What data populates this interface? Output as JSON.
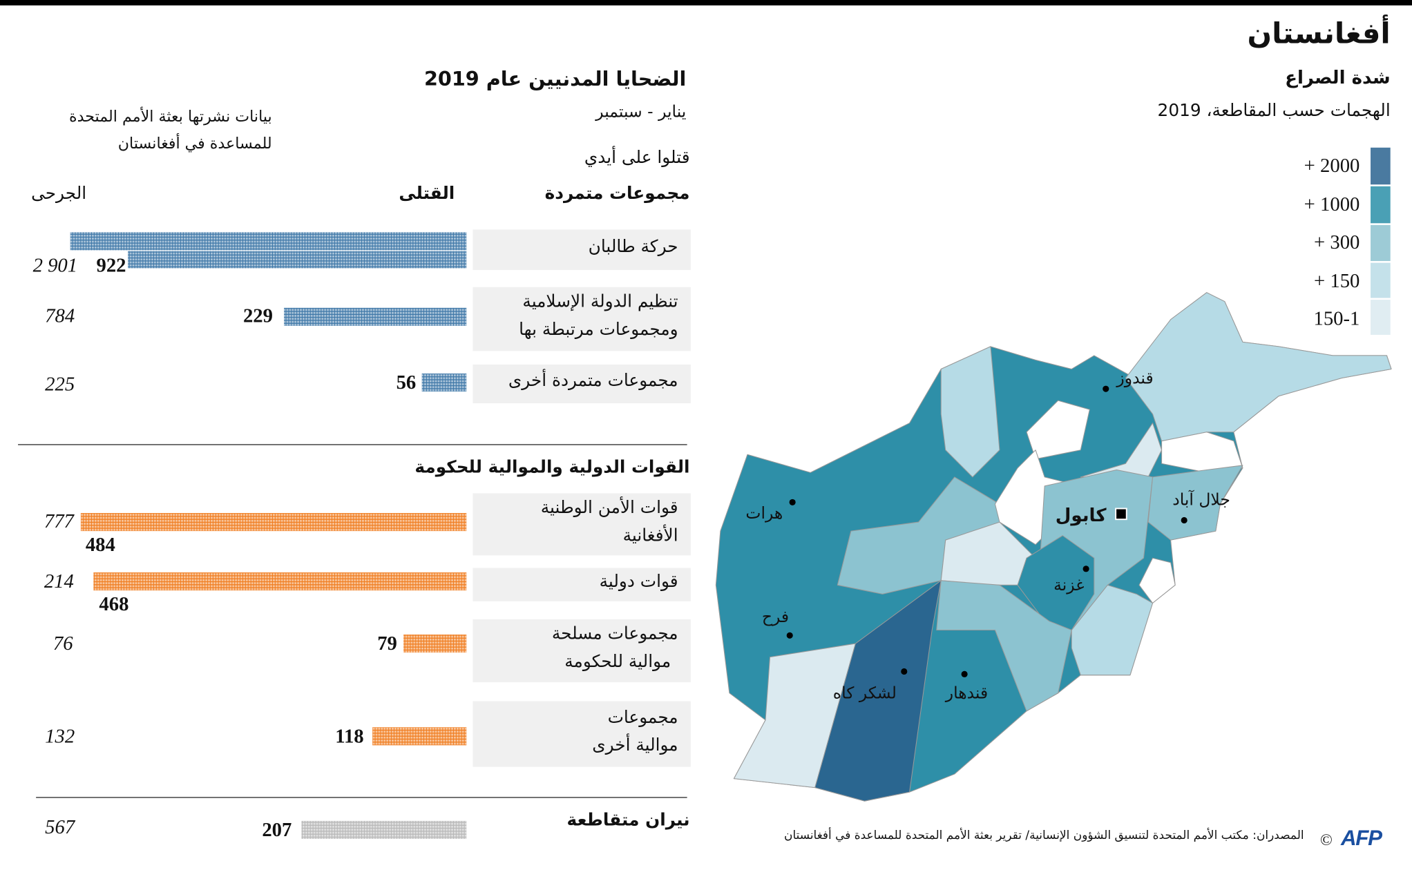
{
  "map": {
    "title": "أفغانستان",
    "subtitle": "شدة الصراع",
    "description": "الهجمات حسب المقاطعة، 2019",
    "legend": [
      {
        "label": "+ 2000",
        "color": "#4a7aa0"
      },
      {
        "label": "+ 1000",
        "color": "#4aa0b5"
      },
      {
        "label": "+ 300",
        "color": "#9dcbd6"
      },
      {
        "label": "+ 150",
        "color": "#c4e1ea"
      },
      {
        "label": "150-1",
        "color": "#e0edf2"
      }
    ],
    "cities": {
      "kunduz": "قندوز",
      "herat": "هرات",
      "farah": "فرح",
      "lashkar_gah": "لشكر كاه",
      "kandahar": "قندهار",
      "ghazni": "غزنة",
      "kabul": "كابول",
      "jalalabad": "جلال آباد"
    }
  },
  "chart_data": {
    "type": "bar",
    "title": "الضحايا المدنيين عام 2019",
    "subtitle": "يناير - سبتمبر",
    "note": [
      "بيانات نشرتها بعثة الأمم المتحدة",
      "للمساعدة في أفغانستان"
    ],
    "killed_by_label": "قتلوا على أيدي",
    "column_killed": "القتلى",
    "column_wounded": "الجرحى",
    "colors": {
      "insurgents": "#3f78a8",
      "pro_government": "#f07d20",
      "crossfire": "#b8b8b8"
    },
    "groups": [
      {
        "name": "مجموعات متمردة",
        "color_key": "insurgents",
        "rows": [
          {
            "label": [
              "حركة طالبان"
            ],
            "killed": 922,
            "wounded": "2 901"
          },
          {
            "label": [
              "تنظيم الدولة الإسلامية",
              "ومجموعات مرتبطة بها"
            ],
            "killed": 229,
            "wounded": "784"
          },
          {
            "label": [
              "مجموعات متمردة أخرى"
            ],
            "killed": 56,
            "wounded": "225"
          }
        ]
      },
      {
        "name": "القوات الدولية والموالية للحكومة",
        "color_key": "pro_government",
        "rows": [
          {
            "label": [
              "قوات الأمن الوطنية",
              "الأفغانية"
            ],
            "killed": 484,
            "wounded": "777"
          },
          {
            "label": [
              "قوات دولية"
            ],
            "killed": 468,
            "wounded": "214"
          },
          {
            "label": [
              "مجموعات مسلحة",
              "موالية للحكومة"
            ],
            "killed": 79,
            "wounded": "76"
          },
          {
            "label": [
              "مجموعات",
              "موالية أخرى"
            ],
            "killed": 118,
            "wounded": "132"
          }
        ]
      },
      {
        "name": "نيران متقاطعة",
        "color_key": "crossfire",
        "rows": [
          {
            "label": [],
            "killed": 207,
            "wounded": "567"
          }
        ]
      }
    ]
  },
  "footer": {
    "source": "المصدران: مكتب الأمم المتحدة لتنسيق الشؤون الإنسانية/ تقرير بعثة الأمم المتحدة للمساعدة في أفغانستان",
    "copyright": "©",
    "logo": "AFP"
  }
}
